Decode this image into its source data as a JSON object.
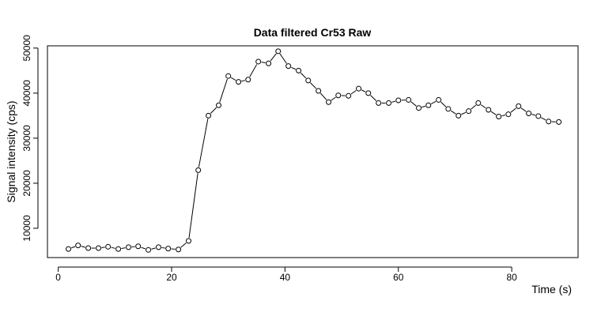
{
  "chart_data": {
    "type": "scatter",
    "title": "Data filtered Cr53 Raw",
    "xlabel": "Time (s)",
    "ylabel": "Signal intensity (cps)",
    "xlim": [
      -1.9,
      91.7
    ],
    "ylim": [
      3500,
      50500
    ],
    "xticks": [
      0,
      20,
      40,
      60,
      80
    ],
    "yticks": [
      10000,
      20000,
      30000,
      40000,
      50000
    ],
    "grid": false,
    "point_style": "open-circle",
    "colors": {
      "points": "#000000",
      "line": "#000000",
      "frame": "#000000"
    },
    "series": [
      {
        "x": [
          1.8,
          3.5,
          5.3,
          7.1,
          8.8,
          10.6,
          12.4,
          14.1,
          15.9,
          17.7,
          19.4,
          21.2,
          23.0,
          24.7,
          26.5,
          28.3,
          30.0,
          31.8,
          33.5,
          35.3,
          37.1,
          38.8,
          40.6,
          42.4,
          44.1,
          45.9,
          47.7,
          49.4,
          51.2,
          53.0,
          54.7,
          56.5,
          58.3,
          60.0,
          61.8,
          63.6,
          65.3,
          67.1,
          68.8,
          70.6,
          72.4,
          74.1,
          75.9,
          77.7,
          79.4,
          81.2,
          83.0,
          84.7,
          86.5,
          88.3
        ],
        "y": [
          5400,
          6200,
          5600,
          5600,
          5900,
          5400,
          5800,
          6000,
          5200,
          5800,
          5500,
          5300,
          7200,
          22900,
          35000,
          37300,
          43800,
          42500,
          43000,
          47000,
          46600,
          49300,
          46000,
          45000,
          42800,
          40500,
          38000,
          39500,
          39400,
          41000,
          40000,
          37800,
          37800,
          38400,
          38500,
          36700,
          37300,
          38500,
          36500,
          35000,
          36000,
          37800,
          36300,
          34800,
          35300,
          37100,
          35500,
          34900,
          33700,
          33600
        ]
      }
    ]
  }
}
